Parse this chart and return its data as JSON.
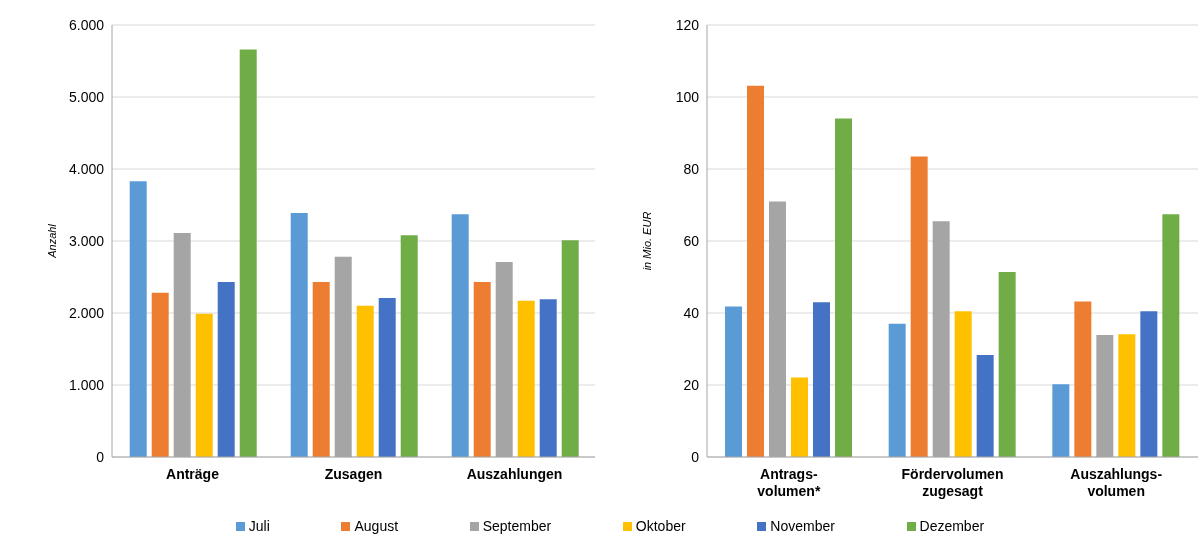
{
  "chart_data": [
    {
      "type": "bar",
      "ylabel": "Anzahl",
      "categories": [
        "Anträge",
        "Zusagen",
        "Auszahlungen"
      ],
      "series": [
        {
          "name": "Juli",
          "color": "#5b9bd5",
          "values": [
            3830,
            3390,
            3370
          ]
        },
        {
          "name": "August",
          "color": "#ed7d31",
          "values": [
            2280,
            2430,
            2430
          ]
        },
        {
          "name": "September",
          "color": "#a5a5a5",
          "values": [
            3110,
            2780,
            2710
          ]
        },
        {
          "name": "Oktober",
          "color": "#ffc000",
          "values": [
            1990,
            2100,
            2170
          ]
        },
        {
          "name": "November",
          "color": "#4472c4",
          "values": [
            2430,
            2210,
            2190
          ]
        },
        {
          "name": "Dezember",
          "color": "#70ad47",
          "values": [
            5660,
            3080,
            3010
          ]
        }
      ],
      "ylim": [
        0,
        6000
      ],
      "yticks": [
        0,
        {
          "value": 1000,
          "label": "1.000"
        },
        {
          "value": 2000,
          "label": "2.000"
        },
        {
          "value": 3000,
          "label": "3.000"
        },
        {
          "value": 4000,
          "label": "4.000"
        },
        {
          "value": 5000,
          "label": "5.000"
        },
        {
          "value": 6000,
          "label": "6.000"
        }
      ],
      "grid": "y",
      "legend": "bottom"
    },
    {
      "type": "bar",
      "ylabel": "in Mio. EUR",
      "categories": [
        "Antrags-\nvolumen*",
        "Fördervolumen\nzugesagt",
        "Auszahlungs-\nvolumen"
      ],
      "series": [
        {
          "name": "Juli",
          "color": "#5b9bd5",
          "values": [
            41.8,
            37.0,
            20.2
          ]
        },
        {
          "name": "August",
          "color": "#ed7d31",
          "values": [
            103.1,
            83.5,
            43.2
          ]
        },
        {
          "name": "September",
          "color": "#a5a5a5",
          "values": [
            71.0,
            65.5,
            33.9
          ]
        },
        {
          "name": "Oktober",
          "color": "#ffc000",
          "values": [
            22.1,
            40.5,
            34.1
          ]
        },
        {
          "name": "November",
          "color": "#4472c4",
          "values": [
            43.0,
            28.3,
            40.5
          ]
        },
        {
          "name": "Dezember",
          "color": "#70ad47",
          "values": [
            94.0,
            51.4,
            67.4
          ]
        }
      ],
      "ylim": [
        0,
        120
      ],
      "yticks": [
        0,
        20,
        40,
        60,
        80,
        100,
        120
      ],
      "grid": "y",
      "legend": "bottom"
    }
  ]
}
